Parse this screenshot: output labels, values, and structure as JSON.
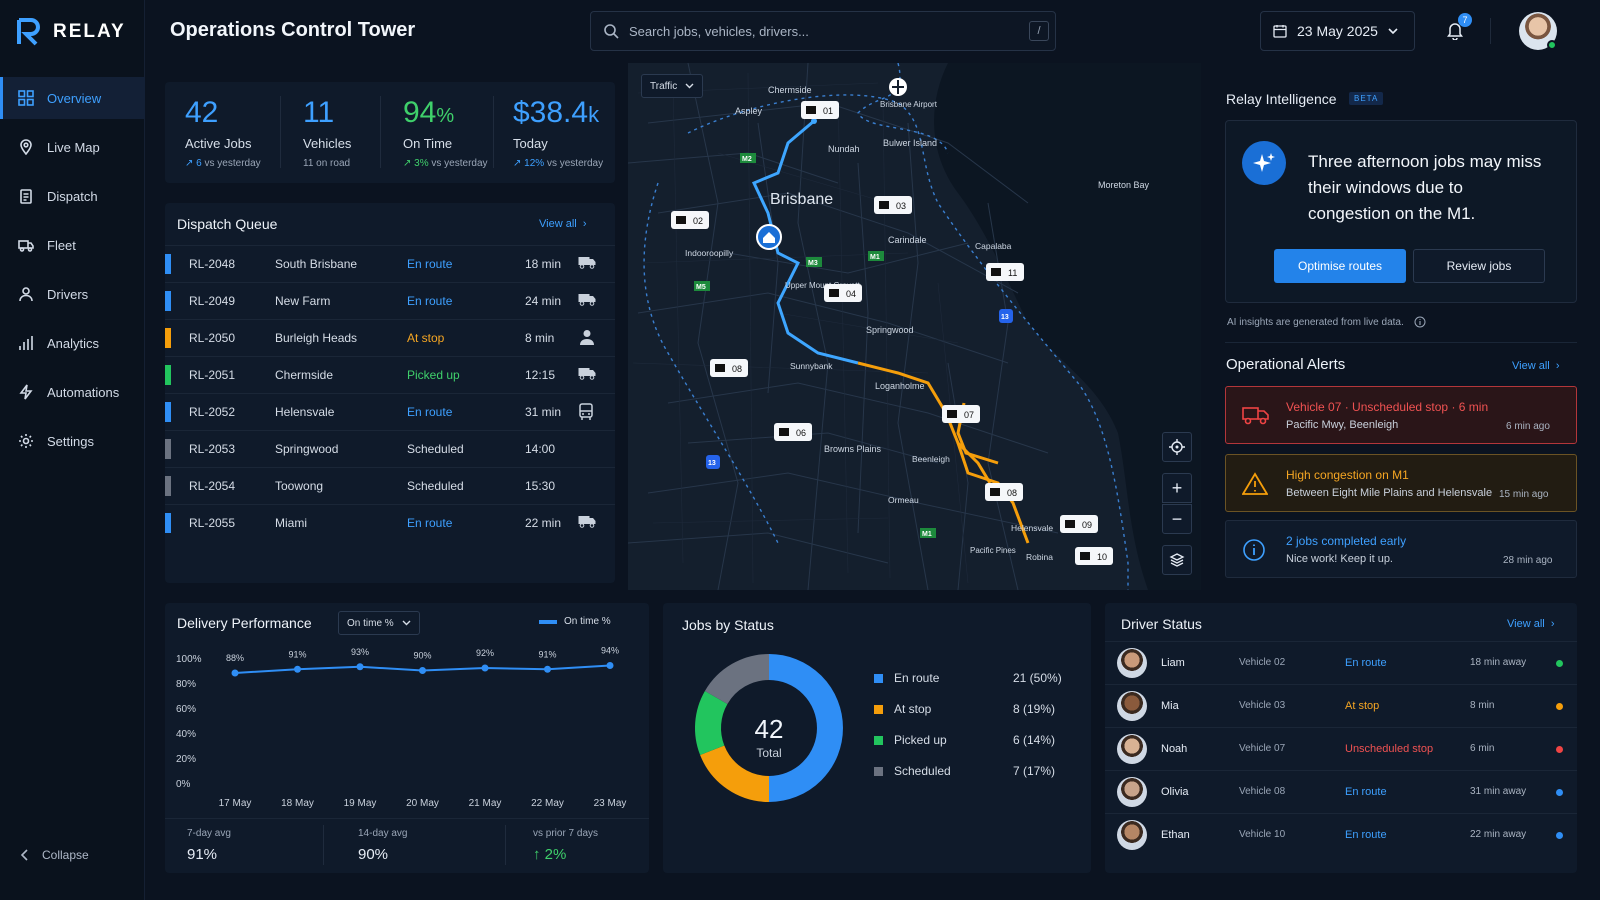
{
  "brand": {
    "name": "RELAY"
  },
  "nav": {
    "items": [
      {
        "label": "Overview",
        "icon": "grid-icon",
        "active": true
      },
      {
        "label": "Live Map",
        "icon": "map-pin-icon"
      },
      {
        "label": "Dispatch",
        "icon": "clipboard-icon"
      },
      {
        "label": "Fleet",
        "icon": "truck-icon"
      },
      {
        "label": "Drivers",
        "icon": "user-icon"
      },
      {
        "label": "Analytics",
        "icon": "bar-chart-icon"
      },
      {
        "label": "Automations",
        "icon": "bolt-icon"
      },
      {
        "label": "Settings",
        "icon": "gear-icon"
      }
    ],
    "collapse": "Collapse"
  },
  "header": {
    "title": "Operations Control Tower",
    "search_placeholder": "Search jobs, vehicles, drivers...",
    "search_shortcut": "/",
    "date": "23 May 2025",
    "notifications": "7"
  },
  "stats": [
    {
      "value": "42",
      "unit": "",
      "label": "Active Jobs",
      "delta": "6",
      "delta_suffix": " vs yesterday"
    },
    {
      "value": "11",
      "unit": "",
      "label": "Vehicles",
      "sub": "11 on road"
    },
    {
      "value": "94",
      "unit": "%",
      "label": "On Time",
      "delta": "3%",
      "delta_suffix": " vs yesterday"
    },
    {
      "value": "$38.4",
      "unit": "k",
      "label": "Today",
      "delta": "12%",
      "delta_suffix": " vs yesterday"
    }
  ],
  "dispatch": {
    "title": "Dispatch Queue",
    "view_all": "View all",
    "rows": [
      {
        "id": "RL-2048",
        "place": "South Brisbane",
        "status": "En route",
        "time": "18 min",
        "color": "#2f8ef5",
        "icon": "truck"
      },
      {
        "id": "RL-2049",
        "place": "New Farm",
        "status": "En route",
        "time": "24 min",
        "color": "#2f8ef5",
        "icon": "truck"
      },
      {
        "id": "RL-2050",
        "place": "Burleigh Heads",
        "status": "At stop",
        "time": "8 min",
        "color": "#f59e0b",
        "icon": "person"
      },
      {
        "id": "RL-2051",
        "place": "Chermside",
        "status": "Picked up",
        "time": "12:15",
        "color": "#22c55e",
        "icon": "truck"
      },
      {
        "id": "RL-2052",
        "place": "Helensvale",
        "status": "En route",
        "time": "31 min",
        "color": "#2f8ef5",
        "icon": "bus"
      },
      {
        "id": "RL-2053",
        "place": "Springwood",
        "status": "Scheduled",
        "time": "14:00",
        "color": "#6b7280",
        "icon": ""
      },
      {
        "id": "RL-2054",
        "place": "Toowong",
        "status": "Scheduled",
        "time": "15:30",
        "color": "#6b7280",
        "icon": ""
      },
      {
        "id": "RL-2055",
        "place": "Miami",
        "status": "En route",
        "time": "22 min",
        "color": "#2f8ef5",
        "icon": "truck"
      }
    ]
  },
  "map": {
    "layer_select": "Traffic",
    "labels": [
      "Chermside",
      "Aspley",
      "Brisbane Airport",
      "Nundah",
      "Bulwer Island",
      "Moreton Bay",
      "Brisbane",
      "Indooroopilly",
      "Carindale",
      "Capalaba",
      "Upper Mount Gravatt",
      "Springwood",
      "Sunnybank",
      "Loganholme",
      "Browns Plains",
      "Beenleigh",
      "Ormeau",
      "Helensvale",
      "Pacific Pines",
      "Robina"
    ],
    "road_badges": [
      "M2",
      "M3",
      "M1",
      "M5",
      "13",
      "13",
      "M1"
    ],
    "vehicles": [
      "01",
      "02",
      "03",
      "04",
      "06",
      "07",
      "08",
      "08",
      "09",
      "10",
      "11"
    ]
  },
  "intelligence": {
    "title": "Relay Intelligence",
    "badge": "BETA",
    "message": "Three afternoon jobs may miss their windows due to congestion on the M1.",
    "primary": "Optimise routes",
    "secondary": "Review jobs",
    "note": "AI insights are generated from live data."
  },
  "alerts": {
    "title": "Operational Alerts",
    "view_all": "View all",
    "items": [
      {
        "title": "Vehicle 07 · Unscheduled stop · 6 min",
        "detail": "Pacific Mwy, Beenleigh",
        "ago": "6 min ago"
      },
      {
        "title": "High congestion on M1",
        "detail": "Between Eight Mile Plains and Helensvale",
        "ago": "15 min ago"
      },
      {
        "title": "2 jobs completed early",
        "detail": "Nice work! Keep it up.",
        "ago": "28 min ago"
      }
    ]
  },
  "performance": {
    "title": "Delivery Performance",
    "select": "On time %",
    "legend": "On time %",
    "footer": [
      {
        "label": "7-day avg",
        "value": "91%"
      },
      {
        "label": "14-day avg",
        "value": "90%"
      },
      {
        "label": "vs prior 7 days",
        "value": "2%"
      }
    ]
  },
  "jobs_status": {
    "title": "Jobs by Status",
    "total": "42",
    "total_label": "Total"
  },
  "drivers": {
    "title": "Driver Status",
    "view_all": "View all",
    "rows": [
      {
        "name": "Liam",
        "vehicle": "Vehicle 02",
        "status": "En route",
        "eta": "18 min away",
        "color": "#22c55e"
      },
      {
        "name": "Mia",
        "vehicle": "Vehicle 03",
        "status": "At stop",
        "eta": "8 min",
        "color": "#f59e0b"
      },
      {
        "name": "Noah",
        "vehicle": "Vehicle 07",
        "status": "Unscheduled stop",
        "eta": "6 min",
        "color": "#ef4444"
      },
      {
        "name": "Olivia",
        "vehicle": "Vehicle 08",
        "status": "En route",
        "eta": "31 min away",
        "color": "#2f8ef5"
      },
      {
        "name": "Ethan",
        "vehicle": "Vehicle 10",
        "status": "En route",
        "eta": "22 min away",
        "color": "#2f8ef5"
      }
    ]
  },
  "chart_data": [
    {
      "type": "line",
      "x": [
        "17 May",
        "18 May",
        "19 May",
        "20 May",
        "21 May",
        "22 May",
        "23 May"
      ],
      "series": [
        {
          "name": "On time %",
          "values": [
            88,
            91,
            93,
            90,
            92,
            91,
            94
          ]
        }
      ],
      "data_labels": [
        "88%",
        "91%",
        "93%",
        "90%",
        "92%",
        "91%",
        "94%"
      ],
      "ylim": [
        0,
        100
      ],
      "yticks": [
        "0%",
        "20%",
        "40%",
        "60%",
        "80%",
        "100%"
      ],
      "color": "#2f8ef5"
    },
    {
      "type": "pie",
      "labels": [
        "En route",
        "At stop",
        "Picked up",
        "Scheduled"
      ],
      "values": [
        21,
        8,
        6,
        7
      ],
      "value_labels": [
        "21 (50%)",
        "8 (19%)",
        "6 (14%)",
        "7 (17%)"
      ],
      "colors": [
        "#2f8ef5",
        "#f59e0b",
        "#22c55e",
        "#6b7280"
      ]
    }
  ]
}
